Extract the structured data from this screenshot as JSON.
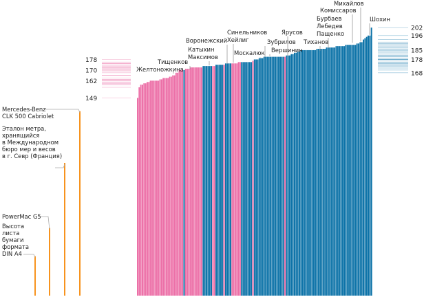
{
  "chart_data": {
    "type": "bar",
    "title": "",
    "xlabel": "",
    "ylabel": "",
    "ylim": [
      0,
      202
    ],
    "units": "cm",
    "colors": {
      "female": "#ec6fa7",
      "male": "#0d73a8",
      "reference": "#f7931e",
      "leader": "#888888"
    },
    "series": [
      {
        "name": "female",
        "color": "#ec6fa7"
      },
      {
        "name": "male",
        "color": "#0d73a8"
      }
    ],
    "bars": [
      {
        "v": 149,
        "g": "f"
      },
      {
        "v": 157,
        "g": "f"
      },
      {
        "v": 159,
        "g": "f"
      },
      {
        "v": 159,
        "g": "f"
      },
      {
        "v": 160,
        "g": "f"
      },
      {
        "v": 160,
        "g": "f"
      },
      {
        "v": 161,
        "g": "f"
      },
      {
        "v": 161,
        "g": "f"
      },
      {
        "v": 162,
        "g": "f"
      },
      {
        "v": 162,
        "g": "f"
      },
      {
        "v": 162,
        "g": "f"
      },
      {
        "v": 162,
        "g": "f"
      },
      {
        "v": 162,
        "g": "f"
      },
      {
        "v": 162,
        "g": "f"
      },
      {
        "v": 163,
        "g": "f"
      },
      {
        "v": 163,
        "g": "f"
      },
      {
        "v": 164,
        "g": "f"
      },
      {
        "v": 164,
        "g": "f"
      },
      {
        "v": 164,
        "g": "f"
      },
      {
        "v": 164,
        "g": "f"
      },
      {
        "v": 165,
        "g": "f"
      },
      {
        "v": 165,
        "g": "f"
      },
      {
        "v": 166,
        "g": "f"
      },
      {
        "v": 166,
        "g": "f"
      },
      {
        "v": 168,
        "g": "f"
      },
      {
        "v": 168,
        "g": "f"
      },
      {
        "v": 170,
        "g": "f"
      },
      {
        "v": 170,
        "g": "f"
      },
      {
        "v": 170,
        "g": "f"
      },
      {
        "v": 170,
        "g": "m"
      },
      {
        "v": 171,
        "g": "f"
      },
      {
        "v": 171,
        "g": "f"
      },
      {
        "v": 171,
        "g": "f"
      },
      {
        "v": 172,
        "g": "f"
      },
      {
        "v": 172,
        "g": "f"
      },
      {
        "v": 172,
        "g": "f"
      },
      {
        "v": 172,
        "g": "f"
      },
      {
        "v": 172,
        "g": "f"
      },
      {
        "v": 172,
        "g": "f"
      },
      {
        "v": 172,
        "g": "f"
      },
      {
        "v": 172,
        "g": "f"
      },
      {
        "v": 173,
        "g": "m"
      },
      {
        "v": 173,
        "g": "m"
      },
      {
        "v": 173,
        "g": "m"
      },
      {
        "v": 173,
        "g": "m"
      },
      {
        "v": 173,
        "g": "m"
      },
      {
        "v": 173,
        "g": "m"
      },
      {
        "v": 173,
        "g": "f"
      },
      {
        "v": 173,
        "g": "f"
      },
      {
        "v": 174,
        "g": "m"
      },
      {
        "v": 174,
        "g": "m"
      },
      {
        "v": 174,
        "g": "m"
      },
      {
        "v": 174,
        "g": "m"
      },
      {
        "v": 174,
        "g": "m"
      },
      {
        "v": 174,
        "g": "f"
      },
      {
        "v": 175,
        "g": "m"
      },
      {
        "v": 175,
        "g": "m"
      },
      {
        "v": 175,
        "g": "m"
      },
      {
        "v": 175,
        "g": "m"
      },
      {
        "v": 175,
        "g": "f"
      },
      {
        "v": 175,
        "g": "f"
      },
      {
        "v": 175,
        "g": "f"
      },
      {
        "v": 175,
        "g": "f"
      },
      {
        "v": 176,
        "g": "f"
      },
      {
        "v": 176,
        "g": "f"
      },
      {
        "v": 176,
        "g": "m"
      },
      {
        "v": 176,
        "g": "m"
      },
      {
        "v": 176,
        "g": "m"
      },
      {
        "v": 176,
        "g": "m"
      },
      {
        "v": 176,
        "g": "m"
      },
      {
        "v": 176,
        "g": "m"
      },
      {
        "v": 176,
        "g": "m"
      },
      {
        "v": 177,
        "g": "f"
      },
      {
        "v": 178,
        "g": "m"
      },
      {
        "v": 178,
        "g": "m"
      },
      {
        "v": 178,
        "g": "m"
      },
      {
        "v": 179,
        "g": "m"
      },
      {
        "v": 179,
        "g": "m"
      },
      {
        "v": 179,
        "g": "m"
      },
      {
        "v": 180,
        "g": "m"
      },
      {
        "v": 180,
        "g": "m"
      },
      {
        "v": 180,
        "g": "m"
      },
      {
        "v": 180,
        "g": "m"
      },
      {
        "v": 180,
        "g": "m"
      },
      {
        "v": 180,
        "g": "m"
      },
      {
        "v": 180,
        "g": "m"
      },
      {
        "v": 180,
        "g": "m"
      },
      {
        "v": 180,
        "g": "m"
      },
      {
        "v": 180,
        "g": "m"
      },
      {
        "v": 180,
        "g": "m"
      },
      {
        "v": 180,
        "g": "m"
      },
      {
        "v": 180,
        "g": "m"
      },
      {
        "v": 180,
        "g": "f"
      },
      {
        "v": 181,
        "g": "m"
      },
      {
        "v": 181,
        "g": "m"
      },
      {
        "v": 181,
        "g": "m"
      },
      {
        "v": 182,
        "g": "m"
      },
      {
        "v": 182,
        "g": "m"
      },
      {
        "v": 183,
        "g": "m"
      },
      {
        "v": 183,
        "g": "m"
      },
      {
        "v": 184,
        "g": "m"
      },
      {
        "v": 184,
        "g": "m"
      },
      {
        "v": 185,
        "g": "m"
      },
      {
        "v": 185,
        "g": "m"
      },
      {
        "v": 185,
        "g": "m"
      },
      {
        "v": 185,
        "g": "m"
      },
      {
        "v": 185,
        "g": "m"
      },
      {
        "v": 185,
        "g": "m"
      },
      {
        "v": 185,
        "g": "m"
      },
      {
        "v": 185,
        "g": "m"
      },
      {
        "v": 185,
        "g": "m"
      },
      {
        "v": 185,
        "g": "m"
      },
      {
        "v": 186,
        "g": "m"
      },
      {
        "v": 186,
        "g": "m"
      },
      {
        "v": 186,
        "g": "m"
      },
      {
        "v": 186,
        "g": "m"
      },
      {
        "v": 186,
        "g": "m"
      },
      {
        "v": 186,
        "g": "m"
      },
      {
        "v": 187,
        "g": "m"
      },
      {
        "v": 187,
        "g": "m"
      },
      {
        "v": 187,
        "g": "m"
      },
      {
        "v": 187,
        "g": "m"
      },
      {
        "v": 187,
        "g": "m"
      },
      {
        "v": 187,
        "g": "m"
      },
      {
        "v": 188,
        "g": "m"
      },
      {
        "v": 188,
        "g": "m"
      },
      {
        "v": 188,
        "g": "m"
      },
      {
        "v": 188,
        "g": "m"
      },
      {
        "v": 188,
        "g": "m"
      },
      {
        "v": 188,
        "g": "m"
      },
      {
        "v": 189,
        "g": "m"
      },
      {
        "v": 189,
        "g": "m"
      },
      {
        "v": 189,
        "g": "m"
      },
      {
        "v": 189,
        "g": "m"
      },
      {
        "v": 189,
        "g": "m"
      },
      {
        "v": 189,
        "g": "m"
      },
      {
        "v": 189,
        "g": "m"
      },
      {
        "v": 190,
        "g": "m"
      },
      {
        "v": 190,
        "g": "m"
      },
      {
        "v": 191,
        "g": "m"
      },
      {
        "v": 191,
        "g": "m"
      },
      {
        "v": 193,
        "g": "m"
      },
      {
        "v": 194,
        "g": "m"
      },
      {
        "v": 195,
        "g": "m"
      },
      {
        "v": 196,
        "g": "m"
      },
      {
        "v": 196,
        "g": "m"
      },
      {
        "v": 202,
        "g": "m"
      }
    ],
    "annotations": [
      {
        "text": [
          "Желтоножкина"
        ],
        "bar": 26
      },
      {
        "text": [
          "Тищенков"
        ],
        "bar": 29
      },
      {
        "text": [
          "Катыхин",
          "Максимов"
        ],
        "bar": 44
      },
      {
        "text": [
          "Воронежский"
        ],
        "bar": 54
      },
      {
        "text": [
          "Синельников",
          "Хейлиг"
        ],
        "bar": 60
      },
      {
        "text": [
          "Москалюк"
        ],
        "bar": 76
      },
      {
        "text": [
          "Зубрилов"
        ],
        "bar": 78
      },
      {
        "text": [
          "Вершинин"
        ],
        "bar": 80
      },
      {
        "text": [
          "Ярусов"
        ],
        "bar": 88
      },
      {
        "text": [
          "Тиханов"
        ],
        "bar": 101
      },
      {
        "text": [
          "Бурбаев",
          "Лебедев",
          "Пащенко"
        ],
        "bar": 115
      },
      {
        "text": [
          "Комиссаров"
        ],
        "bar": 137
      },
      {
        "text": [
          "Михайлов"
        ],
        "bar": 140
      },
      {
        "text": [
          "Шохин"
        ],
        "bar": 145
      }
    ],
    "female_scale_ticks": [
      178,
      170,
      162,
      149
    ],
    "male_scale_ticks": [
      202,
      196,
      185,
      178,
      168
    ],
    "female_scale_marks": [
      178,
      176,
      175,
      175,
      175,
      174,
      173,
      173,
      172,
      172,
      172,
      172,
      171,
      171,
      170,
      170,
      170,
      169,
      168,
      166,
      166,
      164,
      163,
      163,
      162,
      162,
      162,
      161,
      161,
      160,
      160,
      159,
      159,
      157,
      149
    ],
    "male_scale_marks": [
      202,
      196,
      193,
      191,
      190,
      190,
      189,
      189,
      188,
      187,
      187,
      186,
      185,
      185,
      185,
      184,
      183,
      182,
      181,
      181,
      180,
      180,
      179,
      179,
      178,
      178,
      178,
      177,
      176,
      176,
      175,
      175,
      174,
      174,
      173,
      173,
      172,
      171,
      170,
      168
    ],
    "references": [
      {
        "label": [
          "Mercedes-Benz",
          "CLK 500 Cabriolet"
        ],
        "value": 139
      },
      {
        "label": [
          "Эталон метра,",
          "хранящийся",
          "в Международном",
          "бюро мер и весов",
          "в г. Севр (Франция)"
        ],
        "value": 100
      },
      {
        "label": [
          "PowerMac G5"
        ],
        "value": 51
      },
      {
        "label": [
          "Высота",
          "листа",
          "бумаги",
          "формата",
          "DIN A4"
        ],
        "value": 29.7
      }
    ]
  }
}
